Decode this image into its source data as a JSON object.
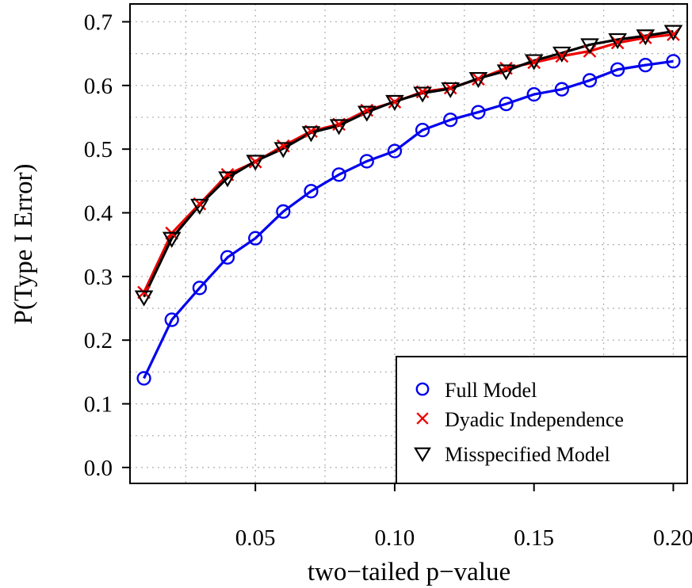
{
  "chart_data": {
    "type": "line",
    "xlabel": "two−tailed p−value",
    "ylabel": "P(Type I Error)",
    "xlim": [
      0.005,
      0.205
    ],
    "ylim": [
      -0.025,
      0.728
    ],
    "x_ticks": [
      0.05,
      0.1,
      0.15,
      0.2
    ],
    "x_tick_labels": [
      "0.05",
      "0.10",
      "0.15",
      "0.20"
    ],
    "y_ticks": [
      0.0,
      0.1,
      0.2,
      0.3,
      0.4,
      0.5,
      0.6,
      0.7
    ],
    "y_tick_labels": [
      "0.0",
      "0.1",
      "0.2",
      "0.3",
      "0.4",
      "0.5",
      "0.6",
      "0.7"
    ],
    "grid": true,
    "legend_position": "bottom-right",
    "x": [
      0.01,
      0.02,
      0.03,
      0.04,
      0.05,
      0.06,
      0.07,
      0.08,
      0.09,
      0.1,
      0.11,
      0.12,
      0.13,
      0.14,
      0.15,
      0.16,
      0.17,
      0.18,
      0.19,
      0.2
    ],
    "series": [
      {
        "name": "Full Model",
        "color": "#0000ee",
        "marker": "circle",
        "values": [
          0.14,
          0.232,
          0.282,
          0.33,
          0.36,
          0.402,
          0.434,
          0.46,
          0.481,
          0.497,
          0.53,
          0.546,
          0.558,
          0.571,
          0.586,
          0.594,
          0.608,
          0.625,
          0.632,
          0.638
        ]
      },
      {
        "name": "Dyadic Independence",
        "color": "#ee0000",
        "marker": "x",
        "values": [
          0.275,
          0.368,
          0.414,
          0.46,
          0.48,
          0.505,
          0.528,
          0.539,
          0.561,
          0.574,
          0.59,
          0.596,
          0.61,
          0.627,
          0.636,
          0.646,
          0.654,
          0.667,
          0.675,
          0.68
        ]
      },
      {
        "name": "Misspecified Model",
        "color": "#000000",
        "marker": "triangle-down",
        "values": [
          0.268,
          0.36,
          0.412,
          0.455,
          0.481,
          0.501,
          0.526,
          0.537,
          0.558,
          0.575,
          0.588,
          0.595,
          0.611,
          0.623,
          0.639,
          0.651,
          0.664,
          0.672,
          0.678,
          0.685
        ]
      }
    ]
  }
}
